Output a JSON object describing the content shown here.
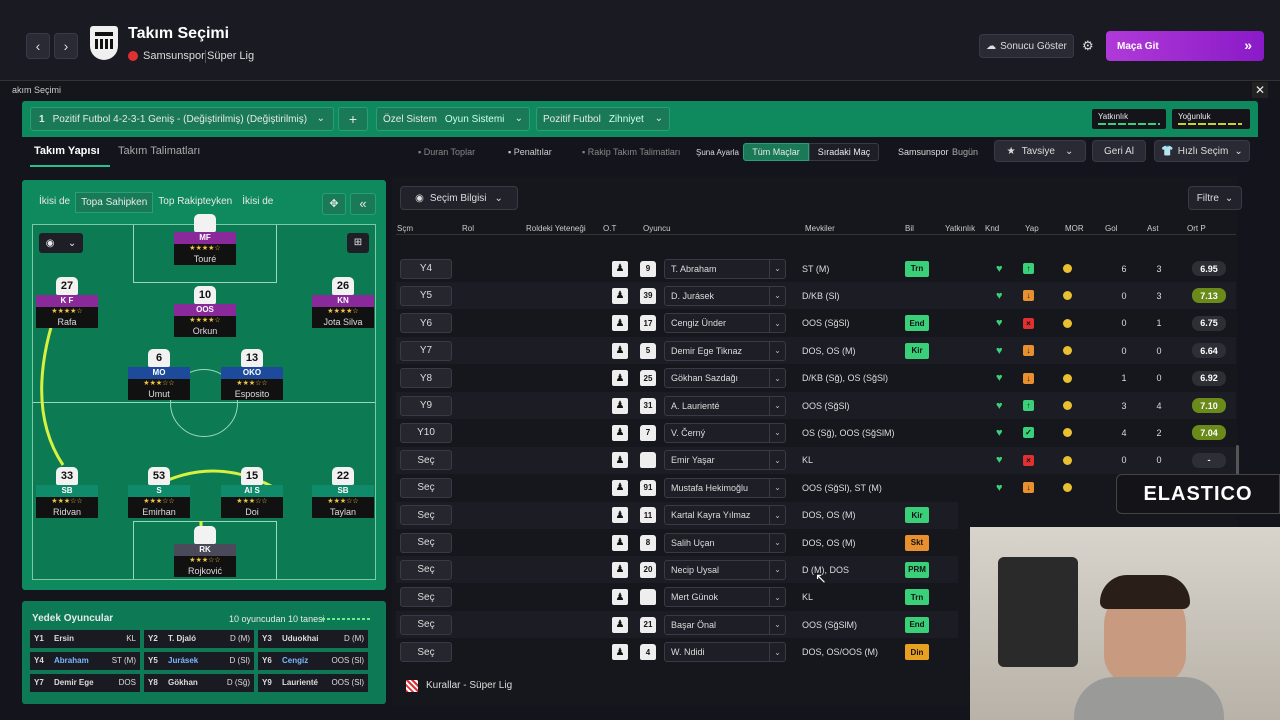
{
  "header": {
    "title": "Takım Seçimi",
    "club": "Samsunspor",
    "league": "Süper Lig",
    "result_btn": "Sonucu Göster",
    "match_btn": "Maça Git",
    "back": "‹",
    "fwd": "›",
    "match_icon": "»"
  },
  "breadcrumb": "akım Seçimi",
  "tactic": {
    "num": "1",
    "name": "Pozitif Futbol 4-2-3-1 Geniş - (Değiştirilmiş) (Değiştirilmiş)",
    "add": "+",
    "system_label": "Özel Sistem",
    "system_value": "Oyun Sistemi",
    "mentality_label": "Pozitif Futbol",
    "mentality_value": "Zihniyet",
    "fam_label": "Yatkınlık",
    "int_label": "Yoğunluk"
  },
  "tabs": {
    "structure": "Takım Yapısı",
    "instructions": "Takım Talimatları"
  },
  "toolbar": {
    "set_pieces": "Duran Toplar",
    "penalties": "Penaltılar",
    "opp_instr": "Rakip Takım Talimatları",
    "set_label": "Şuna Ayarla",
    "all_matches": "Tüm Maçlar",
    "next_match": "Sıradaki Maç",
    "club_label": "Samsunspor",
    "today": "Bugün",
    "recommend": "Tavsiye",
    "undo": "Geri Al",
    "quick": "Hızlı Seçim"
  },
  "pitch_tabs": [
    "İkisi de",
    "Topa Sahipken",
    "Top Rakipteyken",
    "İkisi de"
  ],
  "players": [
    {
      "num": "",
      "pos": "MF",
      "stars": "★★★★☆",
      "name": "Touré",
      "color": "#8a2a9a"
    },
    {
      "num": "27",
      "pos": "K F",
      "stars": "★★★★☆",
      "name": "Rafa",
      "color": "#8a2a9a"
    },
    {
      "num": "10",
      "pos": "OOS",
      "stars": "★★★★☆",
      "name": "Orkun",
      "color": "#8a2a9a"
    },
    {
      "num": "26",
      "pos": "KN",
      "stars": "★★★★☆",
      "name": "Jota Silva",
      "color": "#8a2a9a"
    },
    {
      "num": "6",
      "pos": "MO",
      "stars": "★★★☆☆",
      "name": "Umut",
      "color": "#1d4a9a"
    },
    {
      "num": "13",
      "pos": "OKO",
      "stars": "★★★☆☆",
      "name": "Esposito",
      "color": "#1d4a9a"
    },
    {
      "num": "33",
      "pos": "SB",
      "stars": "★★★☆☆",
      "name": "Ridvan",
      "color": "#0f8a6a"
    },
    {
      "num": "53",
      "pos": "S",
      "stars": "★★★☆☆",
      "name": "Emirhan",
      "color": "#0f8a6a"
    },
    {
      "num": "15",
      "pos": "AI S",
      "stars": "★★★☆☆",
      "name": "Doi",
      "color": "#0f8a6a"
    },
    {
      "num": "22",
      "pos": "SB",
      "stars": "★★★☆☆",
      "name": "Taylan",
      "color": "#0f8a6a"
    },
    {
      "num": "",
      "pos": "RK",
      "stars": "★★★☆☆",
      "name": "Rojković",
      "color": "#4a4a5a"
    }
  ],
  "subs": {
    "title": "Yedek Oyuncular",
    "count": "10 oyuncudan 10 tanesi",
    "rows": [
      [
        {
          "c": "Y1",
          "n": "Ersin",
          "p": "KL"
        },
        {
          "c": "Y2",
          "n": "T. Djaló",
          "p": "D (M)"
        },
        {
          "c": "Y3",
          "n": "Uduokhai",
          "p": "D (M)"
        }
      ],
      [
        {
          "c": "Y4",
          "n": "Abraham",
          "p": "ST (M)"
        },
        {
          "c": "Y5",
          "n": "Jurásek",
          "p": "D (Sl)"
        },
        {
          "c": "Y6",
          "n": "Cengiz",
          "p": "OOS (Sl)"
        }
      ],
      [
        {
          "c": "Y7",
          "n": "Demir Ege",
          "p": "DOS"
        },
        {
          "c": "Y8",
          "n": "Gökhan",
          "p": "D (Sğ)"
        },
        {
          "c": "Y9",
          "n": "Laurienté",
          "p": "OOS (Sl)"
        }
      ]
    ]
  },
  "table": {
    "info": "Seçim Bilgisi",
    "filter": "Filtre",
    "headers": [
      "Sçm",
      "Rol",
      "Roldeki Yeteneği",
      "O.T",
      "Oyuncu",
      "Mevkiler",
      "Bil",
      "Yatkınlık",
      "Knd",
      "Yap",
      "MOR",
      "Gol",
      "Ast",
      "Ort P"
    ],
    "rows": [
      {
        "sel": "Y4",
        "num": "9",
        "name": "T. Abraham",
        "pos": "ST (M)",
        "tag": "Trn",
        "tagc": "#3ad07a",
        "yap": "↑",
        "yapc": "#3ad07a",
        "gol": "6",
        "ast": "3",
        "rating": "6.95",
        "rc": "#2e2e36"
      },
      {
        "sel": "Y5",
        "num": "39",
        "name": "D. Jurásek",
        "pos": "D/KB (Sl)",
        "tag": "",
        "tagc": "",
        "yap": "↓",
        "yapc": "#e89030",
        "gol": "0",
        "ast": "3",
        "rating": "7.13",
        "rc": "#6a8a1a"
      },
      {
        "sel": "Y6",
        "num": "17",
        "name": "Cengiz Ünder",
        "pos": "OOS (SğSl)",
        "tag": "End",
        "tagc": "#3ad07a",
        "yap": "×",
        "yapc": "#e03030",
        "gol": "0",
        "ast": "1",
        "rating": "6.75",
        "rc": "#2e2e36"
      },
      {
        "sel": "Y7",
        "num": "5",
        "name": "Demir Ege Tiknaz",
        "pos": "DOS, OS (M)",
        "tag": "Kir",
        "tagc": "#3ad07a",
        "yap": "↓",
        "yapc": "#e89030",
        "gol": "0",
        "ast": "0",
        "rating": "6.64",
        "rc": "#2e2e36"
      },
      {
        "sel": "Y8",
        "num": "25",
        "name": "Gökhan Sazdağı",
        "pos": "D/KB (Sğ), OS (SğSl)",
        "tag": "",
        "tagc": "",
        "yap": "↓",
        "yapc": "#e89030",
        "gol": "1",
        "ast": "0",
        "rating": "6.92",
        "rc": "#2e2e36"
      },
      {
        "sel": "Y9",
        "num": "31",
        "name": "A. Laurienté",
        "pos": "OOS (SğSl)",
        "tag": "",
        "tagc": "",
        "yap": "↑",
        "yapc": "#3ad07a",
        "gol": "3",
        "ast": "4",
        "rating": "7.10",
        "rc": "#6a8a1a"
      },
      {
        "sel": "Y10",
        "num": "7",
        "name": "V. Černý",
        "pos": "OS (Sğ), OOS (SğSlM)",
        "tag": "",
        "tagc": "",
        "yap": "✓",
        "yapc": "#3ad07a",
        "gol": "4",
        "ast": "2",
        "rating": "7.04",
        "rc": "#6a8a1a"
      },
      {
        "sel": "Seç",
        "num": "",
        "name": "Emir Yaşar",
        "pos": "KL",
        "tag": "",
        "tagc": "",
        "yap": "×",
        "yapc": "#e03030",
        "gol": "0",
        "ast": "0",
        "rating": "-",
        "rc": "#2e2e36"
      },
      {
        "sel": "Seç",
        "num": "91",
        "name": "Mustafa Hekimoğlu",
        "pos": "OOS (SğSl), ST (M)",
        "tag": "",
        "tagc": "",
        "yap": "↓",
        "yapc": "#e89030",
        "gol": "",
        "ast": "",
        "rating": "",
        "rc": ""
      },
      {
        "sel": "Seç",
        "num": "11",
        "name": "Kartal Kayra Yılmaz",
        "pos": "DOS, OS (M)",
        "tag": "Kir",
        "tagc": "#3ad07a",
        "yap": "",
        "yapc": "",
        "gol": "",
        "ast": "",
        "rating": "",
        "rc": ""
      },
      {
        "sel": "Seç",
        "num": "8",
        "name": "Salih Uçan",
        "pos": "DOS, OS (M)",
        "tag": "Skt",
        "tagc": "#e89030",
        "yap": "",
        "yapc": "",
        "gol": "",
        "ast": "",
        "rating": "",
        "rc": ""
      },
      {
        "sel": "Seç",
        "num": "20",
        "name": "Necip Uysal",
        "pos": "D (M), DOS",
        "tag": "PRM",
        "tagc": "#3ad07a",
        "yap": "",
        "yapc": "",
        "gol": "",
        "ast": "",
        "rating": "",
        "rc": ""
      },
      {
        "sel": "Seç",
        "num": "",
        "name": "Mert Günok",
        "pos": "KL",
        "tag": "Trn",
        "tagc": "#3ad07a",
        "yap": "",
        "yapc": "",
        "gol": "",
        "ast": "",
        "rating": "",
        "rc": ""
      },
      {
        "sel": "Seç",
        "num": "21",
        "name": "Başar Önal",
        "pos": "OOS (SğSlM)",
        "tag": "End",
        "tagc": "#3ad07a",
        "yap": "",
        "yapc": "",
        "gol": "",
        "ast": "",
        "rating": "",
        "rc": ""
      },
      {
        "sel": "Seç",
        "num": "4",
        "name": "W. Ndidi",
        "pos": "DOS, OS/OOS (M)",
        "tag": "Din",
        "tagc": "#e8a020",
        "yap": "",
        "yapc": "",
        "gol": "",
        "ast": "",
        "rating": "",
        "rc": ""
      }
    ],
    "rules": "Kurallar - Süper Lig"
  },
  "overlay": {
    "logo": "ELASTICO"
  }
}
